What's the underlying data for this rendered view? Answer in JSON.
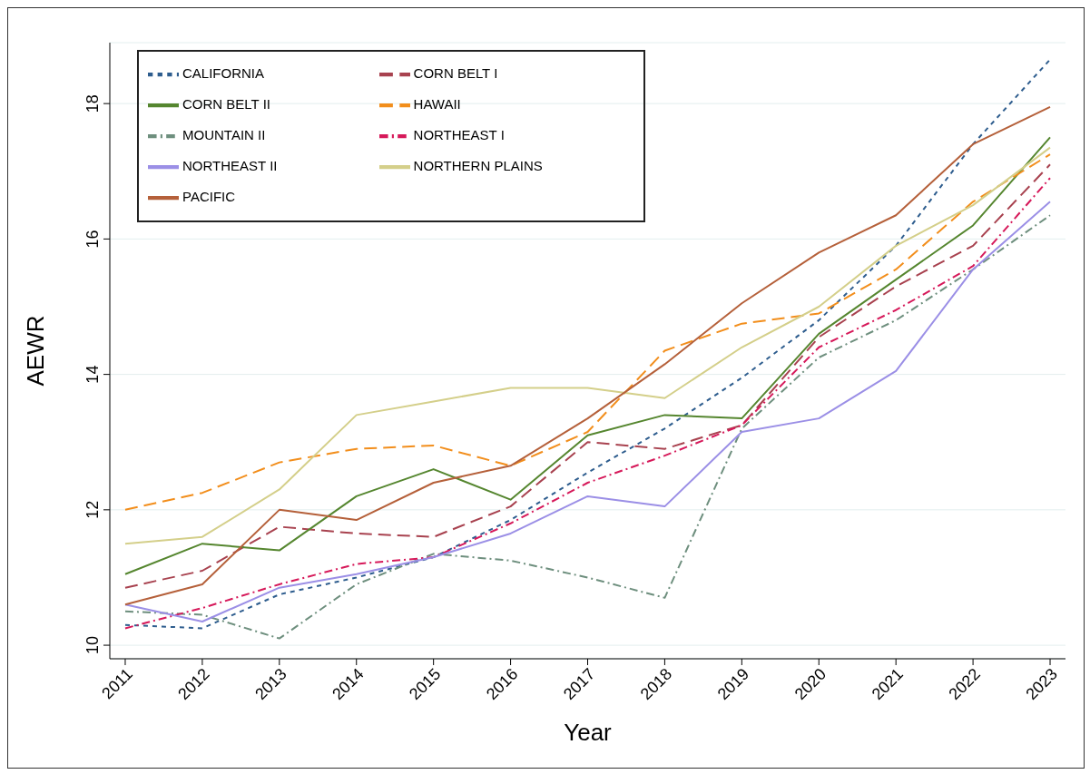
{
  "chart_data": {
    "type": "line",
    "xlabel": "Year",
    "ylabel": "AEWR",
    "x": [
      2011,
      2012,
      2013,
      2014,
      2015,
      2016,
      2017,
      2018,
      2019,
      2020,
      2021,
      2022,
      2023
    ],
    "xlim": [
      2010.8,
      2023.2
    ],
    "xticks": [
      2011,
      2012,
      2013,
      2014,
      2015,
      2016,
      2017,
      2018,
      2019,
      2020,
      2021,
      2022,
      2023
    ],
    "ylim": [
      9.8,
      18.9
    ],
    "yticks": [
      10,
      12,
      14,
      16,
      18
    ],
    "grid": "y",
    "legend": "top left",
    "marker": "none",
    "series": [
      {
        "name": "CALIFORNIA",
        "color": "#2e5d8e",
        "line_style": "dotted",
        "values": [
          10.3,
          10.25,
          10.75,
          11.0,
          11.3,
          11.85,
          12.55,
          13.2,
          13.95,
          14.8,
          15.9,
          17.4,
          18.65
        ]
      },
      {
        "name": "CORN BELT I",
        "color": "#a8424f",
        "line_style": "dashed",
        "values": [
          10.85,
          11.1,
          11.75,
          11.65,
          11.6,
          12.05,
          13.0,
          12.9,
          13.25,
          14.55,
          15.3,
          15.9,
          17.1
        ]
      },
      {
        "name": "CORN BELT II",
        "color": "#55862f",
        "line_style": "solid",
        "values": [
          11.05,
          11.5,
          11.4,
          12.2,
          12.6,
          12.15,
          13.1,
          13.4,
          13.35,
          14.6,
          15.4,
          16.2,
          17.5
        ]
      },
      {
        "name": "HAWAII",
        "color": "#f28e1c",
        "line_style": "dashed",
        "values": [
          12.0,
          12.25,
          12.7,
          12.9,
          12.95,
          12.65,
          13.15,
          14.35,
          14.75,
          14.9,
          15.55,
          16.55,
          17.25
        ]
      },
      {
        "name": "MOUNTAIN II",
        "color": "#6e8f7e",
        "line_style": "dashdot",
        "values": [
          10.5,
          10.45,
          10.1,
          10.9,
          11.35,
          11.25,
          11.0,
          10.7,
          13.2,
          14.25,
          14.8,
          15.55,
          16.35
        ]
      },
      {
        "name": "NORTHEAST I",
        "color": "#d6195a",
        "line_style": "dashdot",
        "values": [
          10.25,
          10.55,
          10.9,
          11.2,
          11.3,
          11.8,
          12.4,
          12.8,
          13.25,
          14.4,
          14.95,
          15.6,
          16.9
        ]
      },
      {
        "name": "NORTHEAST II",
        "color": "#9b8fe6",
        "line_style": "solid",
        "values": [
          10.6,
          10.35,
          10.85,
          11.05,
          11.3,
          11.65,
          12.2,
          12.05,
          13.15,
          13.35,
          14.05,
          15.55,
          16.55
        ]
      },
      {
        "name": "NORTHERN PLAINS",
        "color": "#d4cf8a",
        "line_style": "solid",
        "values": [
          11.5,
          11.6,
          12.3,
          13.4,
          13.6,
          13.8,
          13.8,
          13.65,
          14.4,
          15.0,
          15.9,
          16.5,
          17.35
        ]
      },
      {
        "name": "PACIFIC",
        "color": "#b5603a",
        "line_style": "solid",
        "values": [
          10.6,
          10.9,
          12.0,
          11.85,
          12.4,
          12.65,
          13.35,
          14.15,
          15.05,
          15.8,
          16.35,
          17.4,
          17.95
        ]
      }
    ]
  }
}
